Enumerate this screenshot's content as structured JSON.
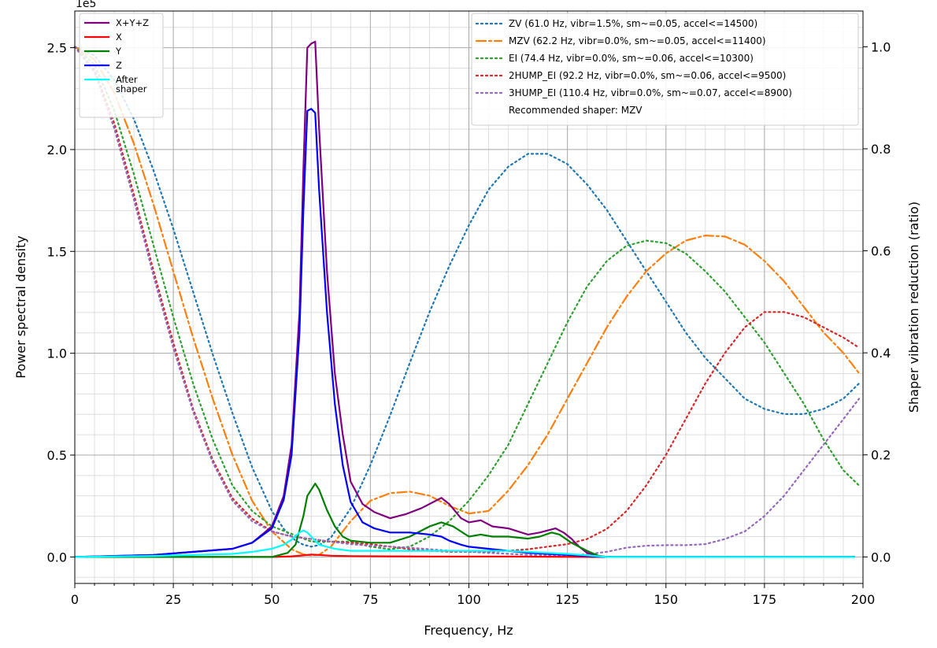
{
  "chart_data": {
    "type": "line",
    "title": "",
    "title_fragment_left": "1e5",
    "xlabel": "Frequency, Hz",
    "ylabel": "Power spectral density",
    "ylabel_right": "Shaper vibration reduction (ratio)",
    "xlim": [
      0,
      200
    ],
    "ylim": [
      -0.13,
      2.68
    ],
    "ylim_right": [
      -0.052,
      1.07
    ],
    "x_ticks": [
      0,
      25,
      50,
      75,
      100,
      125,
      150,
      175,
      200
    ],
    "y_ticks": [
      0.0,
      0.5,
      1.0,
      1.5,
      2.0,
      2.5
    ],
    "y_ticks_right": [
      0.0,
      0.2,
      0.4,
      0.6,
      0.8,
      1.0
    ],
    "grid": true,
    "legend_left_position": "top-left",
    "legend_right_position": "top-right",
    "psd_series": [
      {
        "name": "X+Y+Z",
        "color": "#800080",
        "x": [
          0,
          20,
          40,
          45,
          50,
          53,
          55,
          57,
          58,
          59,
          60,
          61,
          62,
          64,
          66,
          68,
          70,
          73,
          76,
          80,
          84,
          88,
          91,
          93,
          95,
          98,
          100,
          103,
          106,
          110,
          115,
          118,
          120,
          122,
          124,
          126,
          128,
          130,
          133,
          135,
          140,
          160,
          180,
          198
        ],
        "y": [
          0.0,
          0.01,
          0.04,
          0.07,
          0.15,
          0.3,
          0.55,
          1.2,
          1.9,
          2.5,
          2.52,
          2.53,
          2.1,
          1.4,
          0.9,
          0.6,
          0.37,
          0.26,
          0.22,
          0.19,
          0.21,
          0.24,
          0.27,
          0.29,
          0.26,
          0.19,
          0.17,
          0.18,
          0.15,
          0.14,
          0.11,
          0.12,
          0.13,
          0.14,
          0.12,
          0.09,
          0.05,
          0.02,
          0.005,
          0.0,
          0.0,
          0.0,
          0.0,
          0.0
        ]
      },
      {
        "name": "X",
        "color": "#ff0000",
        "x": [
          0,
          50,
          55,
          58,
          60,
          62,
          65,
          70,
          80,
          90,
          100,
          110,
          120,
          130,
          140,
          198
        ],
        "y": [
          0.0,
          0.0,
          0.003,
          0.008,
          0.012,
          0.01,
          0.006,
          0.004,
          0.003,
          0.002,
          0.002,
          0.002,
          0.001,
          0.0,
          0.0,
          0.0
        ]
      },
      {
        "name": "Y",
        "color": "#008000",
        "x": [
          0,
          50,
          54,
          56,
          58,
          59,
          60,
          61,
          62,
          64,
          66,
          68,
          70,
          75,
          80,
          85,
          90,
          93,
          96,
          100,
          103,
          106,
          110,
          115,
          118,
          121,
          123,
          126,
          130,
          133,
          135,
          198
        ],
        "y": [
          0.0,
          0.0,
          0.02,
          0.06,
          0.2,
          0.3,
          0.33,
          0.36,
          0.33,
          0.23,
          0.15,
          0.1,
          0.08,
          0.07,
          0.07,
          0.1,
          0.15,
          0.17,
          0.15,
          0.1,
          0.11,
          0.1,
          0.1,
          0.09,
          0.1,
          0.12,
          0.11,
          0.07,
          0.03,
          0.005,
          0.0,
          0.0
        ]
      },
      {
        "name": "Z",
        "color": "#0000ff",
        "x": [
          0,
          20,
          40,
          45,
          50,
          53,
          55,
          57,
          58,
          59,
          60,
          61,
          62,
          64,
          66,
          68,
          70,
          73,
          76,
          80,
          85,
          90,
          93,
          95,
          98,
          100,
          105,
          110,
          115,
          120,
          125,
          130,
          134,
          198
        ],
        "y": [
          0.0,
          0.01,
          0.04,
          0.07,
          0.14,
          0.28,
          0.5,
          1.1,
          1.7,
          2.19,
          2.2,
          2.18,
          1.8,
          1.2,
          0.75,
          0.45,
          0.27,
          0.17,
          0.14,
          0.12,
          0.12,
          0.11,
          0.1,
          0.08,
          0.06,
          0.05,
          0.04,
          0.03,
          0.02,
          0.015,
          0.01,
          0.005,
          0.0,
          0.0
        ]
      },
      {
        "name": "After\nshaper",
        "color": "#00ffff",
        "x": [
          0,
          20,
          40,
          45,
          50,
          53,
          55,
          57,
          58,
          59,
          60,
          61,
          62,
          64,
          66,
          68,
          70,
          75,
          80,
          90,
          100,
          110,
          120,
          125,
          130,
          135,
          198
        ],
        "y": [
          0.0,
          0.005,
          0.015,
          0.025,
          0.04,
          0.06,
          0.085,
          0.12,
          0.13,
          0.12,
          0.1,
          0.08,
          0.06,
          0.05,
          0.04,
          0.035,
          0.03,
          0.03,
          0.03,
          0.03,
          0.03,
          0.03,
          0.02,
          0.015,
          0.008,
          0.0,
          0.0
        ]
      }
    ],
    "shaper_series": [
      {
        "name": "ZV (61.0 Hz, vibr=1.5%, sm~=0.05, accel<=14500)",
        "color": "#1f77b4",
        "dash": "dotted",
        "x": [
          0,
          5,
          10,
          15,
          20,
          25,
          30,
          35,
          40,
          45,
          50,
          53,
          56,
          58,
          60,
          62,
          65,
          70,
          75,
          80,
          85,
          90,
          95,
          100,
          105,
          110,
          115,
          120,
          125,
          130,
          135,
          140,
          145,
          150,
          155,
          160,
          165,
          170,
          175,
          180,
          185,
          190,
          195,
          199
        ],
        "y": [
          1.0,
          0.983,
          0.935,
          0.858,
          0.757,
          0.643,
          0.52,
          0.397,
          0.282,
          0.176,
          0.09,
          0.055,
          0.032,
          0.024,
          0.02,
          0.023,
          0.038,
          0.095,
          0.18,
          0.277,
          0.38,
          0.48,
          0.57,
          0.65,
          0.72,
          0.765,
          0.79,
          0.79,
          0.77,
          0.73,
          0.68,
          0.62,
          0.56,
          0.5,
          0.44,
          0.39,
          0.35,
          0.31,
          0.29,
          0.28,
          0.28,
          0.29,
          0.31,
          0.34
        ]
      },
      {
        "name": "MZV (62.2 Hz, vibr=0.0%, sm~=0.05, accel<=11400)",
        "color": "#ff7f0e",
        "dash": "dashdot",
        "x": [
          0,
          5,
          10,
          15,
          20,
          25,
          30,
          35,
          40,
          45,
          50,
          55,
          58,
          60,
          62,
          65,
          70,
          75,
          80,
          85,
          90,
          95,
          100,
          105,
          110,
          115,
          120,
          125,
          130,
          135,
          140,
          145,
          150,
          155,
          160,
          165,
          170,
          175,
          180,
          185,
          190,
          195,
          199
        ],
        "y": [
          1.0,
          0.975,
          0.91,
          0.81,
          0.69,
          0.56,
          0.43,
          0.31,
          0.2,
          0.11,
          0.05,
          0.015,
          0.005,
          0.003,
          0.004,
          0.02,
          0.07,
          0.11,
          0.125,
          0.128,
          0.12,
          0.1,
          0.085,
          0.09,
          0.13,
          0.18,
          0.24,
          0.31,
          0.38,
          0.45,
          0.51,
          0.56,
          0.595,
          0.62,
          0.63,
          0.628,
          0.612,
          0.58,
          0.54,
          0.49,
          0.44,
          0.4,
          0.36
        ]
      },
      {
        "name": "EI (74.4 Hz, vibr=0.0%, sm~=0.06, accel<=10300)",
        "color": "#2ca02c",
        "dash": "dotted",
        "x": [
          0,
          5,
          10,
          15,
          20,
          25,
          30,
          35,
          40,
          45,
          50,
          55,
          60,
          65,
          70,
          75,
          80,
          85,
          90,
          95,
          100,
          105,
          110,
          115,
          120,
          125,
          130,
          135,
          140,
          145,
          150,
          155,
          160,
          165,
          170,
          175,
          180,
          185,
          190,
          195,
          199
        ],
        "y": [
          1.0,
          0.965,
          0.875,
          0.75,
          0.61,
          0.47,
          0.34,
          0.23,
          0.14,
          0.09,
          0.06,
          0.045,
          0.03,
          0.03,
          0.03,
          0.02,
          0.015,
          0.02,
          0.04,
          0.07,
          0.11,
          0.16,
          0.22,
          0.3,
          0.38,
          0.46,
          0.53,
          0.58,
          0.61,
          0.62,
          0.615,
          0.595,
          0.56,
          0.52,
          0.47,
          0.42,
          0.36,
          0.3,
          0.23,
          0.17,
          0.14
        ]
      },
      {
        "name": "2HUMP_EI (92.2 Hz, vibr=0.0%, sm~=0.06, accel<=9500)",
        "color": "#d62728",
        "dash": "dotted",
        "x": [
          0,
          5,
          10,
          15,
          20,
          25,
          30,
          35,
          40,
          45,
          50,
          55,
          60,
          65,
          70,
          75,
          80,
          85,
          90,
          95,
          100,
          105,
          110,
          115,
          120,
          125,
          130,
          135,
          140,
          145,
          150,
          155,
          160,
          165,
          170,
          175,
          180,
          185,
          190,
          195,
          199
        ],
        "y": [
          1.0,
          0.955,
          0.85,
          0.71,
          0.56,
          0.42,
          0.29,
          0.19,
          0.115,
          0.075,
          0.05,
          0.04,
          0.035,
          0.03,
          0.028,
          0.025,
          0.02,
          0.015,
          0.012,
          0.01,
          0.01,
          0.01,
          0.012,
          0.015,
          0.02,
          0.025,
          0.035,
          0.055,
          0.09,
          0.14,
          0.2,
          0.27,
          0.34,
          0.4,
          0.45,
          0.48,
          0.48,
          0.47,
          0.45,
          0.43,
          0.41
        ]
      },
      {
        "name": "3HUMP_EI (110.4 Hz, vibr=0.0%, sm~=0.07, accel<=8900)",
        "color": "#9467bd",
        "dash": "dotted",
        "x": [
          0,
          5,
          10,
          15,
          20,
          25,
          30,
          35,
          40,
          45,
          50,
          55,
          60,
          65,
          70,
          75,
          80,
          85,
          90,
          95,
          100,
          105,
          110,
          115,
          120,
          125,
          130,
          135,
          140,
          145,
          150,
          155,
          160,
          165,
          170,
          175,
          180,
          185,
          190,
          195,
          199
        ],
        "y": [
          1.0,
          0.95,
          0.84,
          0.7,
          0.55,
          0.41,
          0.285,
          0.185,
          0.11,
          0.07,
          0.05,
          0.04,
          0.035,
          0.03,
          0.025,
          0.022,
          0.02,
          0.018,
          0.015,
          0.012,
          0.01,
          0.008,
          0.006,
          0.004,
          0.003,
          0.003,
          0.005,
          0.01,
          0.018,
          0.022,
          0.023,
          0.023,
          0.025,
          0.035,
          0.05,
          0.08,
          0.12,
          0.17,
          0.22,
          0.27,
          0.31
        ]
      }
    ],
    "annotation": "Recommended shaper: MZV"
  }
}
